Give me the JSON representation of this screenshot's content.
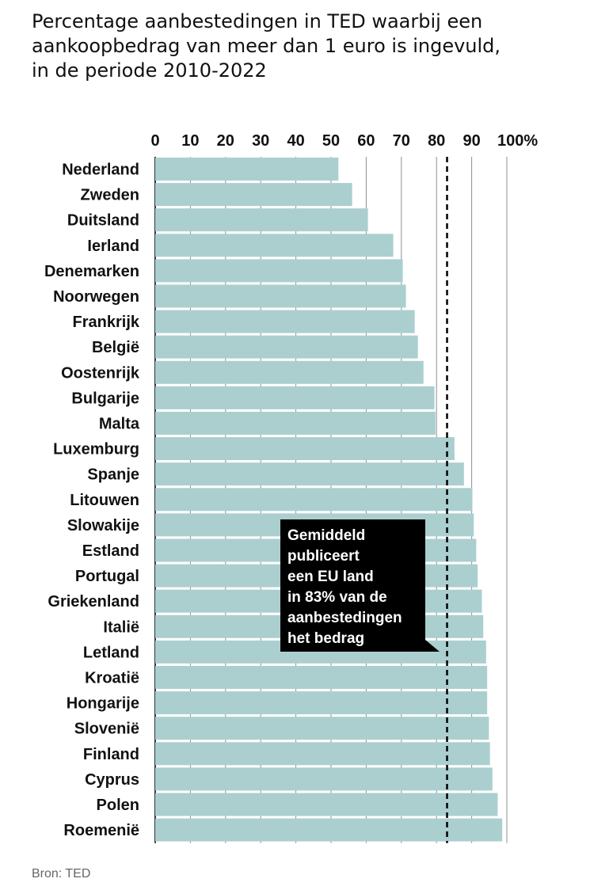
{
  "chart_data": {
    "type": "bar",
    "orientation": "horizontal",
    "title_lines": [
      "Percentage aanbestedingen in TED waarbij een",
      "aankoopbedrag van meer dan 1 euro is ingevuld,",
      "in de periode 2010-2022"
    ],
    "x_ticks": [
      "0",
      "10",
      "20",
      "30",
      "40",
      "50",
      "60",
      "70",
      "80",
      "90",
      "100%"
    ],
    "xlim": [
      0,
      100
    ],
    "categories": [
      "Nederland",
      "Zweden",
      "Duitsland",
      "Ierland",
      "Denemarken",
      "Noorwegen",
      "Frankrijk",
      "België",
      "Oostenrijk",
      "Bulgarije",
      "Malta",
      "Luxemburg",
      "Spanje",
      "Litouwen",
      "Slowakije",
      "Estland",
      "Portugal",
      "Griekenland",
      "Italië",
      "Letland",
      "Kroatië",
      "Hongarije",
      "Slovenië",
      "Finland",
      "Cyprus",
      "Polen",
      "Roemenië"
    ],
    "values": [
      52.1,
      56.0,
      60.5,
      67.7,
      70.4,
      71.3,
      73.8,
      74.7,
      76.3,
      79.4,
      79.7,
      85.1,
      87.8,
      90.2,
      90.6,
      91.3,
      91.7,
      92.9,
      93.3,
      94.1,
      94.4,
      94.4,
      94.9,
      95.2,
      95.9,
      97.4,
      98.7
    ],
    "average_line": {
      "value": 83
    },
    "annotation": {
      "lines": [
        "Gemiddeld",
        "publiceert",
        "een EU land",
        "in 83% van de",
        "aanbestedingen",
        "het bedrag"
      ]
    },
    "colors": {
      "bar": "#abcfcf",
      "gridline": "#8f8f8f",
      "annotation_bg": "#000000",
      "average_line": "#000000"
    },
    "source": "Bron:  TED"
  }
}
